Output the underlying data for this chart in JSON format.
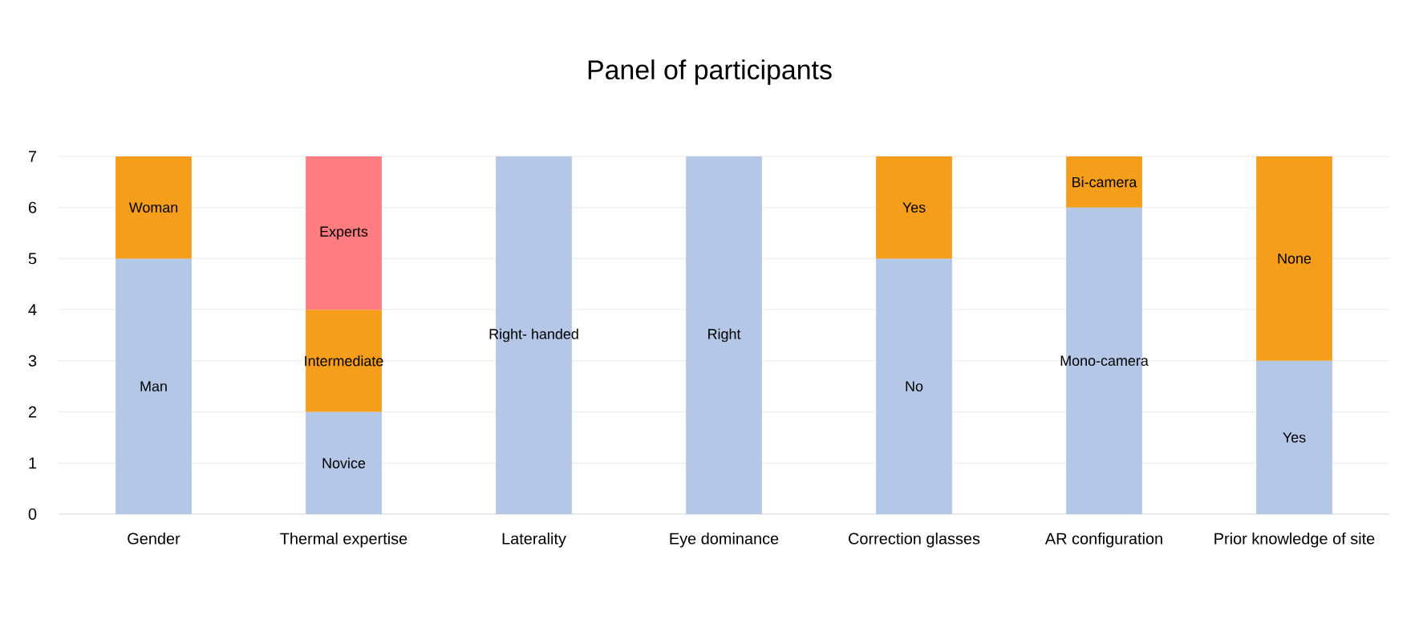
{
  "chart_data": {
    "type": "bar",
    "stacked": true,
    "title": "Panel of participants",
    "categories": [
      "Gender",
      "Thermal expertise",
      "Laterality",
      "Eye dominance",
      "Correction glasses",
      "AR configuration",
      "Prior knowledge of site"
    ],
    "series": [
      {
        "color": "#b4c7e7",
        "values": [
          5,
          2,
          7,
          7,
          5,
          6,
          3
        ],
        "value_labels": [
          "Man",
          "Novice",
          "Right- handed",
          "Right",
          "No",
          "Mono-camera",
          "Yes"
        ]
      },
      {
        "color": "#f59e1b",
        "values": [
          2,
          2,
          null,
          null,
          2,
          1,
          4
        ],
        "value_labels": [
          "Woman",
          "Intermediate",
          null,
          null,
          "Yes",
          "Bi-camera",
          "None"
        ]
      },
      {
        "color": "#ff7c80",
        "values": [
          null,
          3,
          null,
          null,
          null,
          null,
          null
        ],
        "value_labels": [
          null,
          "Experts",
          null,
          null,
          null,
          null,
          null
        ]
      }
    ],
    "ylim": [
      0,
      7
    ],
    "yticks": [
      0,
      1,
      2,
      3,
      4,
      5,
      6,
      7
    ],
    "grid": "y"
  }
}
